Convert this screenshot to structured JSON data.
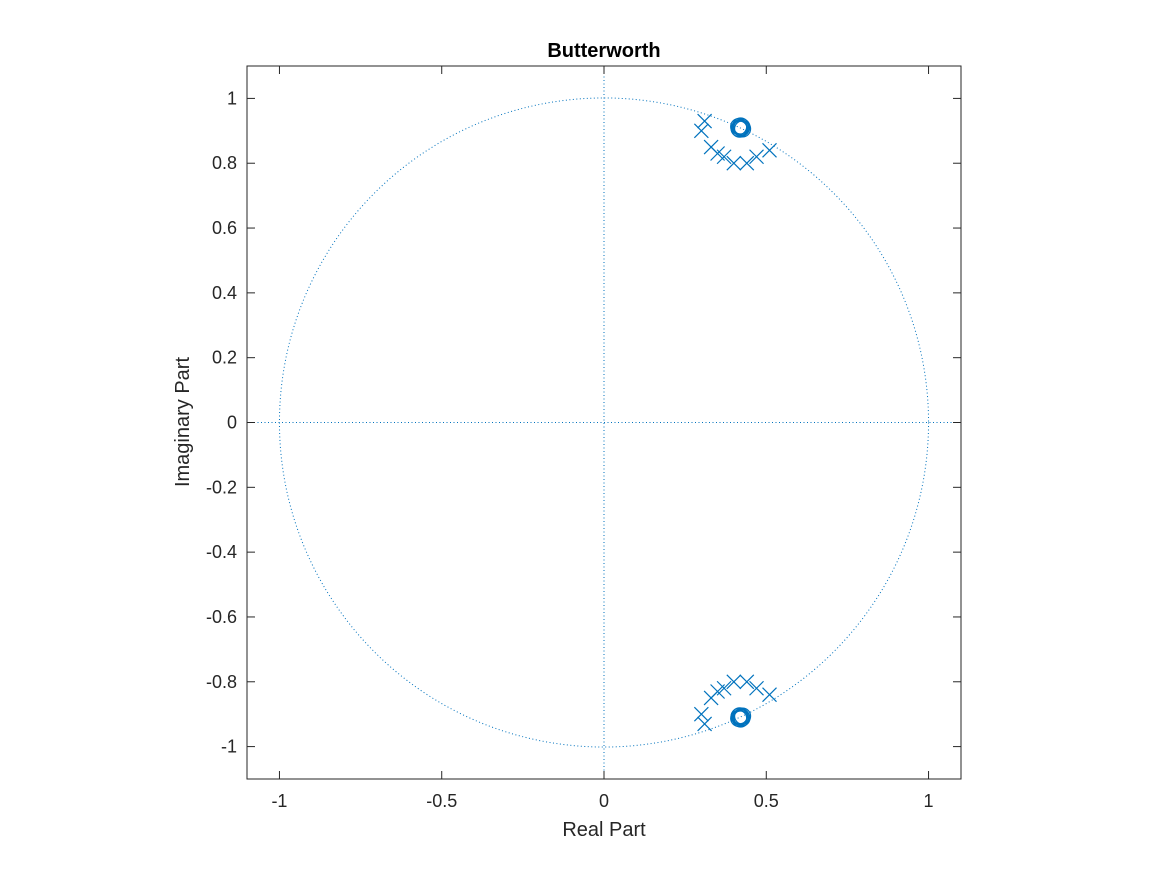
{
  "chart_data": {
    "type": "scatter",
    "plot": "pole-zero",
    "title": "Butterworth",
    "xlabel": "Real Part",
    "ylabel": "Imaginary Part",
    "xlim": [
      -1.1,
      1.1
    ],
    "ylim": [
      -1.1,
      1.1
    ],
    "xticks": [
      -1,
      -0.5,
      0,
      0.5,
      1
    ],
    "xtick_labels": [
      "-1",
      "-0.5",
      "0",
      "0.5",
      "1"
    ],
    "yticks": [
      1,
      0.8,
      0.6,
      0.4,
      0.2,
      0,
      -0.2,
      -0.4,
      -0.6,
      -0.8,
      -1
    ],
    "ytick_labels": [
      "1",
      "0.8",
      "0.6",
      "0.4",
      "0.2",
      "0",
      "-0.2",
      "-0.4",
      "-0.6",
      "-0.8",
      "-1"
    ],
    "grid": false,
    "unit_circle": true,
    "color": "#0072BD",
    "series": [
      {
        "marker": "x",
        "points": [
          [
            0.31,
            0.93
          ],
          [
            0.3,
            0.9
          ],
          [
            0.33,
            0.85
          ],
          [
            0.35,
            0.83
          ],
          [
            0.37,
            0.82
          ],
          [
            0.4,
            0.8
          ],
          [
            0.44,
            0.8
          ],
          [
            0.47,
            0.82
          ],
          [
            0.51,
            0.84
          ],
          [
            0.31,
            -0.93
          ],
          [
            0.3,
            -0.9
          ],
          [
            0.33,
            -0.85
          ],
          [
            0.35,
            -0.83
          ],
          [
            0.37,
            -0.82
          ],
          [
            0.4,
            -0.8
          ],
          [
            0.44,
            -0.8
          ],
          [
            0.47,
            -0.82
          ],
          [
            0.51,
            -0.84
          ]
        ]
      },
      {
        "marker": "o",
        "points": [
          [
            0.42,
            0.91
          ],
          [
            0.423,
            0.908
          ],
          [
            0.418,
            0.905
          ],
          [
            0.425,
            0.912
          ],
          [
            0.415,
            0.913
          ],
          [
            0.421,
            0.915
          ],
          [
            0.427,
            0.906
          ],
          [
            0.416,
            0.907
          ],
          [
            0.42,
            -0.91
          ],
          [
            0.423,
            -0.908
          ],
          [
            0.418,
            -0.905
          ],
          [
            0.425,
            -0.912
          ],
          [
            0.415,
            -0.913
          ],
          [
            0.421,
            -0.915
          ],
          [
            0.427,
            -0.906
          ],
          [
            0.416,
            -0.907
          ]
        ]
      }
    ]
  }
}
